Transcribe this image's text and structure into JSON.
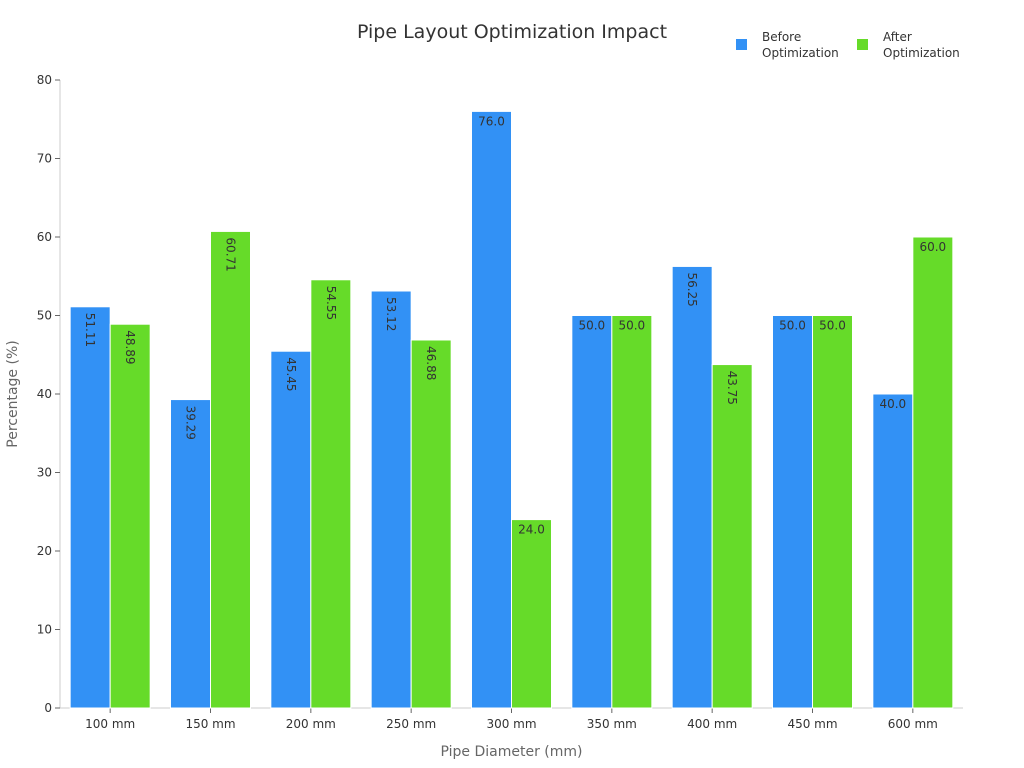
{
  "chart_data": {
    "type": "bar",
    "title": "Pipe Layout Optimization Impact",
    "xlabel": "Pipe Diameter (mm)",
    "ylabel": "Percentage (%)",
    "ylim": [
      0,
      80
    ],
    "yticks": [
      0,
      10,
      20,
      30,
      40,
      50,
      60,
      70,
      80
    ],
    "categories": [
      "100 mm",
      "150 mm",
      "200 mm",
      "250 mm",
      "300 mm",
      "350 mm",
      "400 mm",
      "450 mm",
      "600 mm"
    ],
    "series": [
      {
        "name": "Before Optimization",
        "name_lines": [
          "Before",
          "Optimization"
        ],
        "color": "#3291f5",
        "values": [
          51.11,
          39.29,
          45.45,
          53.12,
          76.0,
          50.0,
          56.25,
          50.0,
          40.0
        ],
        "labels": [
          "51.11",
          "39.29",
          "45.45",
          "53.12",
          "76.0",
          "50.0",
          "56.25",
          "50.0",
          "40.0"
        ]
      },
      {
        "name": "After Optimization",
        "name_lines": [
          "After",
          "Optimization"
        ],
        "color": "#66db29",
        "values": [
          48.89,
          60.71,
          54.55,
          46.88,
          24.0,
          50.0,
          43.75,
          50.0,
          60.0
        ],
        "labels": [
          "48.89",
          "60.71",
          "54.55",
          "46.88",
          "24.0",
          "50.0",
          "43.75",
          "50.0",
          "60.0"
        ]
      }
    ],
    "legend_position": "top-right",
    "grid": false
  }
}
